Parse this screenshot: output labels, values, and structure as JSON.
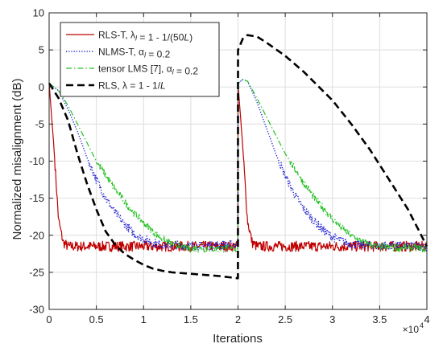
{
  "chart_data": {
    "type": "line",
    "title": "",
    "xlabel": "Iterations",
    "ylabel": "Normalized misalignment (dB)",
    "x_multiplier_label": "×10",
    "x_multiplier_exponent": "4",
    "xlim": [
      0,
      4
    ],
    "ylim": [
      -30,
      10
    ],
    "x_ticks": [
      0,
      0.5,
      1,
      1.5,
      2,
      2.5,
      3,
      3.5,
      4
    ],
    "y_ticks": [
      -30,
      -25,
      -20,
      -15,
      -10,
      -5,
      0,
      5,
      10
    ],
    "grid": true,
    "legend_position": "top-left",
    "series": [
      {
        "name": "RLS-T, λl = 1 - 1/(50L)",
        "legend_parts": [
          {
            "t": "RLS-T, "
          },
          {
            "t": "λ",
            "style": "normal"
          },
          {
            "t": "l",
            "style": "sub-italic"
          },
          {
            "t": " = 1 - 1/(50"
          },
          {
            "t": "L",
            "style": "italic"
          },
          {
            "t": ")"
          }
        ],
        "color": "#c00000",
        "dash": "solid",
        "x": [
          0,
          0.05,
          0.1,
          0.15,
          0.2,
          0.3,
          0.5,
          1,
          1.5,
          1.999,
          2.0,
          2.05,
          2.1,
          2.15,
          2.2,
          2.3,
          2.5,
          3,
          3.5,
          4
        ],
        "y": [
          0.5,
          -8,
          -18,
          -21,
          -21.5,
          -21.5,
          -21.5,
          -21.5,
          -21.5,
          -21.5,
          0.5,
          -8,
          -18,
          -21,
          -21.5,
          -21.5,
          -21.5,
          -21.5,
          -21.5,
          -21.5
        ],
        "noise": 0.7
      },
      {
        "name": "NLMS-T, αl = 0.2",
        "legend_parts": [
          {
            "t": "NLMS-T, "
          },
          {
            "t": "α",
            "style": "normal"
          },
          {
            "t": "l",
            "style": "sub-italic"
          },
          {
            "t": " = 0.2"
          }
        ],
        "color": "#1f1fd0",
        "dash": "dotted",
        "x": [
          0,
          0.1,
          0.2,
          0.3,
          0.4,
          0.5,
          0.6,
          0.7,
          0.8,
          0.9,
          1.0,
          1.1,
          1.2,
          1.5,
          1.999,
          2.0,
          2.05,
          2.1,
          2.2,
          2.3,
          2.4,
          2.5,
          2.6,
          2.7,
          2.8,
          2.9,
          3.0,
          3.1,
          3.2,
          3.5,
          4
        ],
        "y": [
          0.5,
          -0.5,
          -3,
          -6,
          -9.5,
          -12.5,
          -15,
          -17,
          -18.5,
          -19.8,
          -20.5,
          -21,
          -21.3,
          -21.4,
          -21.3,
          0.5,
          1,
          0.8,
          -2,
          -5.5,
          -9,
          -12,
          -14.5,
          -16.5,
          -18,
          -19.3,
          -20.2,
          -20.8,
          -21.2,
          -21.4,
          -21.5
        ],
        "noise": 0.6
      },
      {
        "name": "tensor LMS [7], αl = 0.2",
        "legend_parts": [
          {
            "t": "tensor LMS [7], "
          },
          {
            "t": "α",
            "style": "normal"
          },
          {
            "t": "l",
            "style": "sub-italic"
          },
          {
            "t": " = 0.2"
          }
        ],
        "color": "#22c022",
        "dash": "dashdot",
        "x": [
          0,
          0.1,
          0.2,
          0.3,
          0.4,
          0.5,
          0.6,
          0.7,
          0.8,
          0.9,
          1.0,
          1.1,
          1.2,
          1.3,
          1.4,
          1.5,
          1.999,
          2.0,
          2.05,
          2.1,
          2.2,
          2.3,
          2.4,
          2.5,
          2.6,
          2.7,
          2.8,
          2.9,
          3.0,
          3.1,
          3.2,
          3.3,
          3.4,
          3.5,
          4
        ],
        "y": [
          0.5,
          -0.5,
          -2.5,
          -5,
          -7.5,
          -10,
          -12,
          -13.8,
          -15.5,
          -17,
          -18.3,
          -19.5,
          -20.5,
          -21.1,
          -21.5,
          -21.8,
          -21.8,
          0.5,
          1,
          0.8,
          -1.5,
          -4,
          -6.5,
          -9,
          -11,
          -13,
          -14.8,
          -16.3,
          -17.8,
          -19,
          -20,
          -20.8,
          -21.3,
          -21.6,
          -21.8
        ],
        "noise": 0.5
      },
      {
        "name": "RLS, λ = 1 - 1/L",
        "legend_parts": [
          {
            "t": "RLS, "
          },
          {
            "t": "λ",
            "style": "normal"
          },
          {
            "t": " = 1 - 1/"
          },
          {
            "t": "L",
            "style": "italic"
          }
        ],
        "color": "#000000",
        "dash": "dashed",
        "x": [
          0,
          0.1,
          0.2,
          0.3,
          0.4,
          0.5,
          0.6,
          0.7,
          0.8,
          0.9,
          1.0,
          1.1,
          1.2,
          1.3,
          1.5,
          1.8,
          1.999,
          2.0,
          2.05,
          2.1,
          2.2,
          2.3,
          2.5,
          2.7,
          3.0,
          3.2,
          3.4,
          3.6,
          3.8,
          3.9,
          4.0
        ],
        "y": [
          0.5,
          -1.5,
          -4.5,
          -9,
          -13,
          -16.5,
          -19.5,
          -21.3,
          -22.5,
          -23.3,
          -24,
          -24.5,
          -24.8,
          -25,
          -25.2,
          -25.5,
          -25.8,
          5,
          6.5,
          7,
          6.8,
          6,
          4.2,
          2,
          -1.8,
          -5,
          -8.5,
          -12.5,
          -16.5,
          -19,
          -21.5
        ],
        "noise": 0
      }
    ]
  }
}
